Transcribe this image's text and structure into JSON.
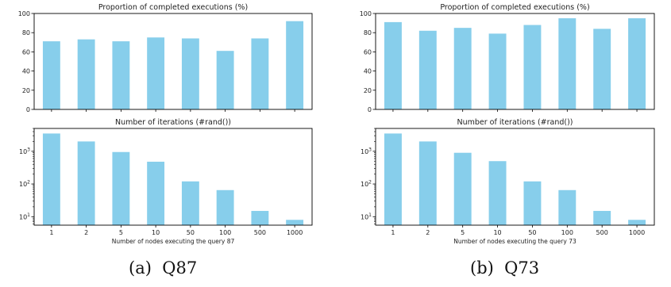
{
  "captions": {
    "a": "(a)  Q87",
    "b": "(b)  Q73"
  },
  "colors": {
    "bar": "#87CEEB",
    "axis": "#000000",
    "text": "#222222"
  },
  "chart_data": [
    {
      "type": "bar",
      "title": "Proportion of completed executions (%)",
      "categories": [
        "1",
        "2",
        "5",
        "10",
        "50",
        "100",
        "500",
        "1000"
      ],
      "values": [
        71,
        73,
        71,
        75,
        74,
        61,
        74,
        92
      ],
      "ylim": [
        0,
        100
      ],
      "yticks": [
        "0",
        "20",
        "40",
        "60",
        "80",
        "100"
      ],
      "xlabel": "",
      "ylabel": "",
      "show_xticklabels": false
    },
    {
      "type": "bar",
      "title": "Number of iterations (#rand())",
      "categories": [
        "1",
        "2",
        "5",
        "10",
        "50",
        "100",
        "500",
        "1000"
      ],
      "values": [
        3500,
        2000,
        950,
        480,
        120,
        65,
        15,
        8
      ],
      "yscale": "log",
      "ylim": [
        5.5,
        5000
      ],
      "yticks": [
        "10¹",
        "10²",
        "10³"
      ],
      "xlabel": "Number of nodes executing the query 87",
      "ylabel": "",
      "show_xticklabels": true
    },
    {
      "type": "bar",
      "title": "Proportion of completed executions (%)",
      "categories": [
        "1",
        "2",
        "5",
        "10",
        "50",
        "100",
        "500",
        "1000"
      ],
      "values": [
        91,
        82,
        85,
        79,
        88,
        95,
        84,
        95
      ],
      "ylim": [
        0,
        100
      ],
      "yticks": [
        "0",
        "20",
        "40",
        "60",
        "80",
        "100"
      ],
      "xlabel": "",
      "ylabel": "",
      "show_xticklabels": false
    },
    {
      "type": "bar",
      "title": "Number of iterations (#rand())",
      "categories": [
        "1",
        "2",
        "5",
        "10",
        "50",
        "100",
        "500",
        "1000"
      ],
      "values": [
        3500,
        2000,
        900,
        500,
        120,
        65,
        15,
        8
      ],
      "yscale": "log",
      "ylim": [
        5.5,
        5000
      ],
      "yticks": [
        "10¹",
        "10²",
        "10³"
      ],
      "xlabel": "Number of nodes executing the query 73",
      "ylabel": "",
      "show_xticklabels": true
    }
  ]
}
